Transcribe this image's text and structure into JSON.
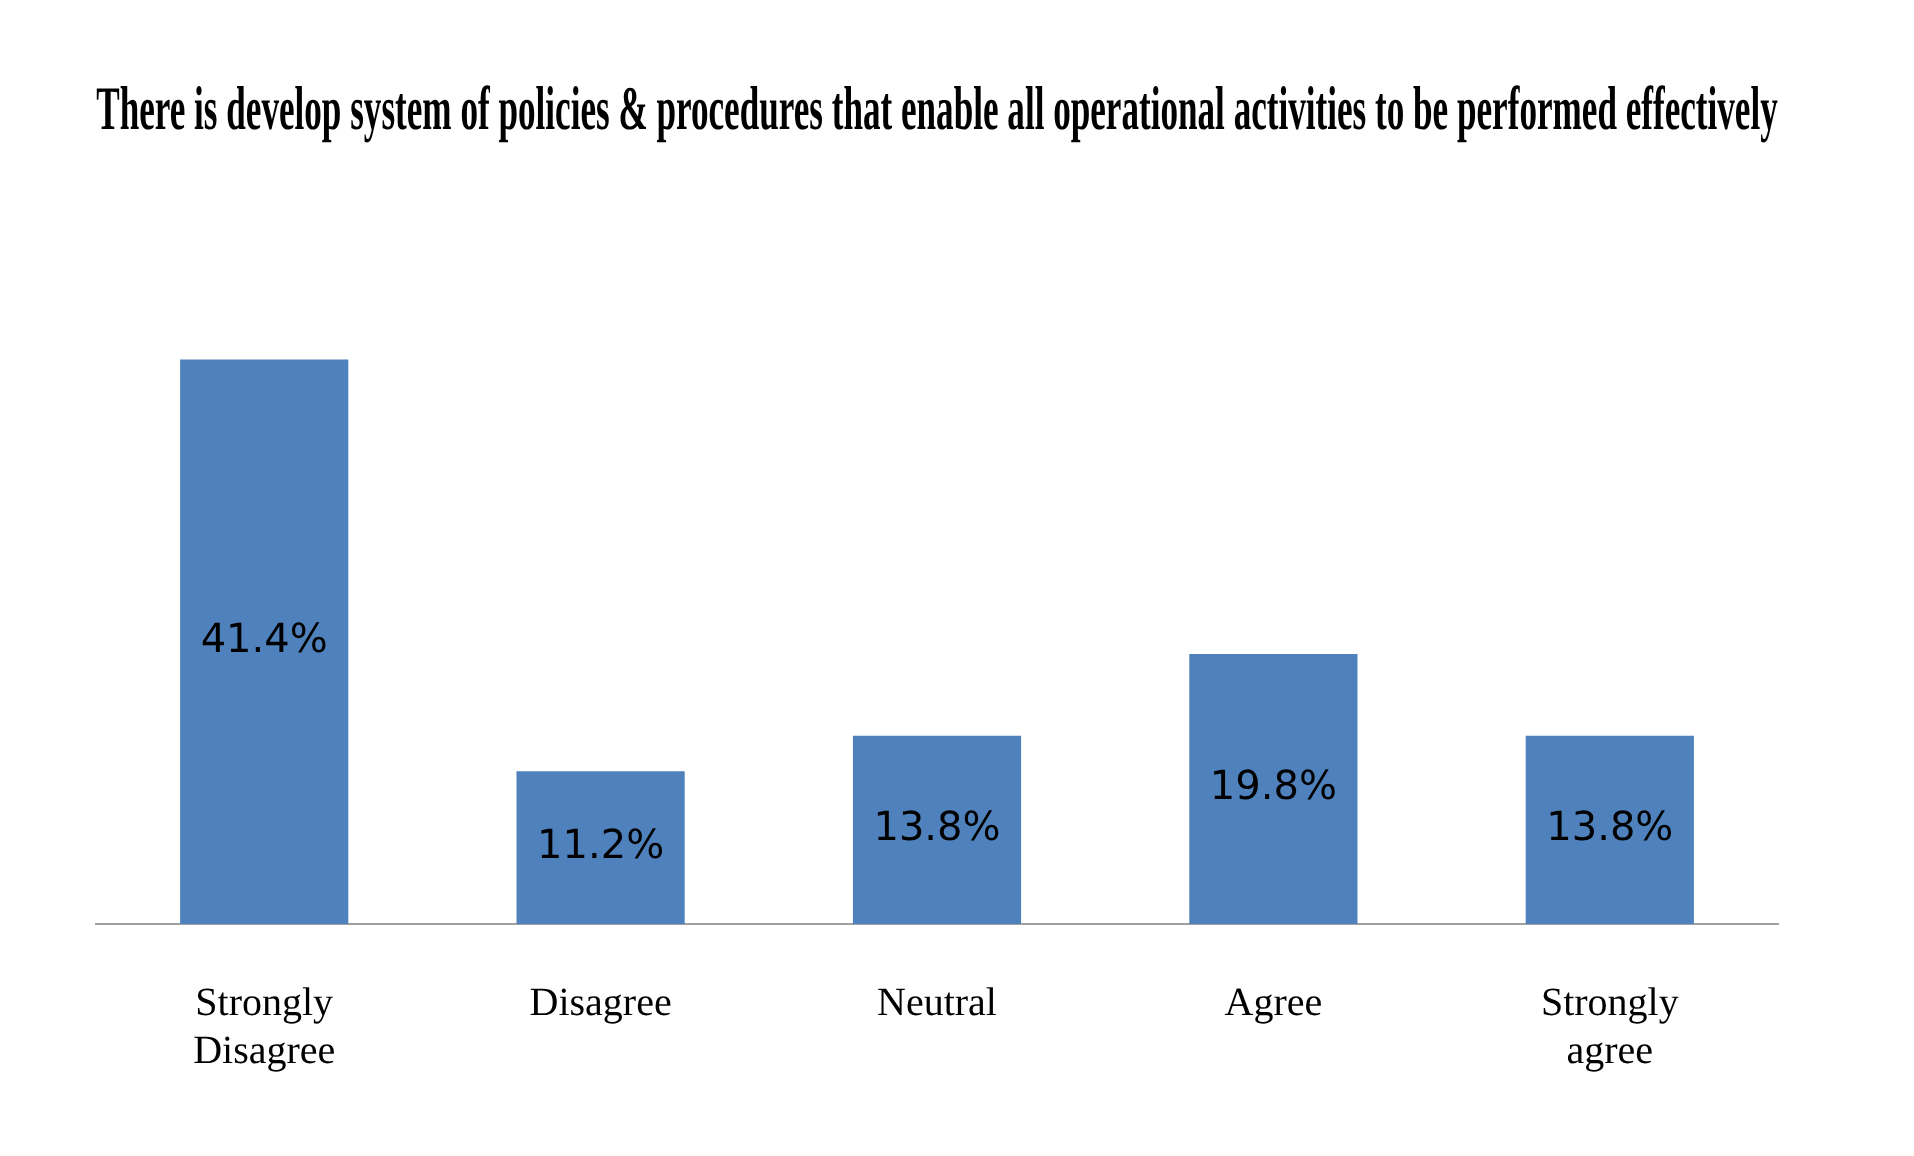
{
  "chart_data": {
    "type": "bar",
    "title": "There is develop system of policies & procedures that enable all operational activities to be performed effectively",
    "categories": [
      "Strongly Disagree",
      "Disagree",
      "Neutral",
      "Agree",
      "Strongly agree"
    ],
    "values": [
      41.4,
      11.2,
      13.8,
      19.8,
      13.8
    ],
    "value_labels": [
      "41.4%",
      "11.2%",
      "13.8%",
      "19.8%",
      "13.8%"
    ],
    "color": "#4f81bd",
    "tick_labels": "x",
    "grid": false,
    "legend": false
  }
}
